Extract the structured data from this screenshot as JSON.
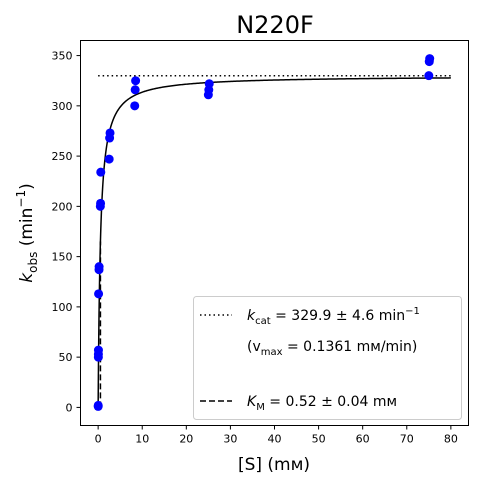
{
  "chart_data": {
    "type": "scatter",
    "title": "N220F",
    "xlabel": "[S] (mм)",
    "ylabel": {
      "base": "k",
      "sub": "obs",
      "unit_open": " (min",
      "sup": "−1",
      "unit_close": ")"
    },
    "xlim": [
      -4,
      84
    ],
    "ylim": [
      -18,
      365
    ],
    "xticks": [
      0,
      10,
      20,
      30,
      40,
      50,
      60,
      70,
      80
    ],
    "yticks": [
      0,
      50,
      100,
      150,
      200,
      250,
      300,
      350
    ],
    "grid": false,
    "legend_position": "lower-right",
    "points_color": "#0000ff",
    "points": [
      {
        "x": 0.01,
        "y": 1
      },
      {
        "x": 0.02,
        "y": 2
      },
      {
        "x": 0.05,
        "y": 50
      },
      {
        "x": 0.06,
        "y": 53
      },
      {
        "x": 0.07,
        "y": 57
      },
      {
        "x": 0.1,
        "y": 113
      },
      {
        "x": 0.2,
        "y": 137
      },
      {
        "x": 0.22,
        "y": 140
      },
      {
        "x": 0.5,
        "y": 200
      },
      {
        "x": 0.55,
        "y": 203
      },
      {
        "x": 0.6,
        "y": 234
      },
      {
        "x": 2.5,
        "y": 247
      },
      {
        "x": 2.6,
        "y": 268
      },
      {
        "x": 2.7,
        "y": 273
      },
      {
        "x": 8.3,
        "y": 300
      },
      {
        "x": 8.4,
        "y": 316
      },
      {
        "x": 8.5,
        "y": 325
      },
      {
        "x": 25,
        "y": 311
      },
      {
        "x": 25.1,
        "y": 316
      },
      {
        "x": 25.2,
        "y": 322
      },
      {
        "x": 75,
        "y": 330
      },
      {
        "x": 75.1,
        "y": 344
      },
      {
        "x": 75.2,
        "y": 347
      }
    ],
    "fit": {
      "kcat": 329.9,
      "KM": 0.52,
      "x_max": 80
    },
    "kcat_line": {
      "y": 329.9,
      "x_start": 0,
      "x_end": 80,
      "style": "dotted"
    },
    "km_line": {
      "x": 0.52,
      "y_start": 0,
      "y_end": 165,
      "style": "dashed"
    },
    "legend": {
      "kcat_entry": {
        "sym": "k",
        "sub": "cat",
        "text": " = 329.9 ± 4.6 min",
        "sup": "−1"
      },
      "vmax_entry": {
        "open": "(v",
        "sub": "max",
        "text": " = 0.1361 mм/min)"
      },
      "km_entry": {
        "sym": "K",
        "sub": "M",
        "text": " = 0.52 ± 0.04 mм"
      }
    }
  }
}
